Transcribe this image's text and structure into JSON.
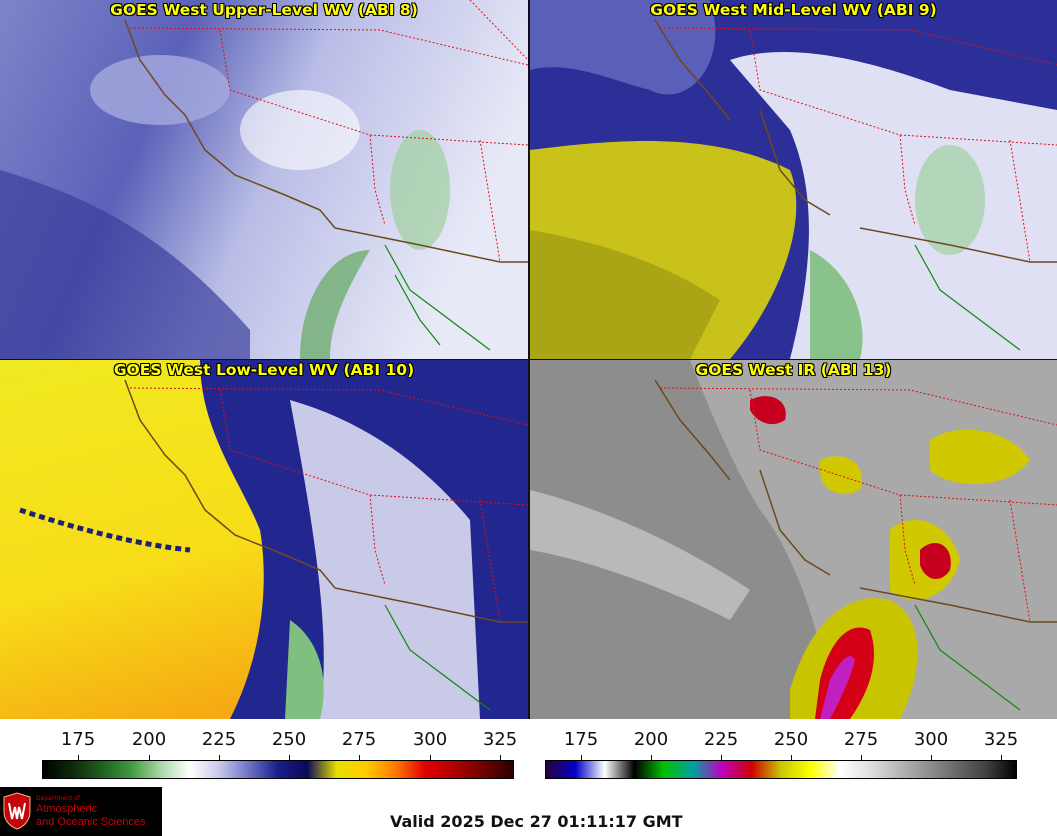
{
  "panels": [
    {
      "title": "GOES West Upper-Level WV (ABI 8)",
      "scheme": "wv",
      "ocean": "#5a62b5"
    },
    {
      "title": "GOES West Mid-Level WV (ABI 9)",
      "scheme": "wv-dry",
      "ocean": "#2c2f97"
    },
    {
      "title": "GOES West Low-Level WV (ABI 10)",
      "scheme": "wv-low",
      "ocean": "#e8e020"
    },
    {
      "title": "GOES West IR (ABI 13)",
      "scheme": "ir",
      "ocean": "#8d8d8d"
    }
  ],
  "scales": [
    {
      "name": "wv-colorbar",
      "ticks": [
        "175",
        "200",
        "225",
        "250",
        "275",
        "300",
        "325"
      ],
      "colors": [
        "#000000",
        "#0c2a0c",
        "#1f5e1f",
        "#3f9a3f",
        "#a8d7a8",
        "#ffffff",
        "#c8c8ea",
        "#6e73c6",
        "#1a1e8c",
        "#0a0a5a",
        "#e8e000",
        "#ffcc00",
        "#ff7a00",
        "#e00000",
        "#b00000",
        "#700000",
        "#2a0000"
      ]
    },
    {
      "name": "ir-colorbar",
      "ticks": [
        "175",
        "200",
        "225",
        "250",
        "275",
        "300",
        "325"
      ],
      "colors": [
        "#2a0040",
        "#0000c8",
        "#ffffff",
        "#000000",
        "#00c000",
        "#00a0a0",
        "#c000c0",
        "#d00000",
        "#c8c800",
        "#ffff00",
        "#ffffff",
        "#e0e0e0",
        "#b8b8b8",
        "#909090",
        "#686868",
        "#404040",
        "#000000"
      ]
    }
  ],
  "logo": {
    "dept": "Department of",
    "line1": "Atmospheric",
    "line2": "and Oceanic Sciences"
  },
  "valid": "Valid 2025 Dec 27 01:11:17 GMT"
}
